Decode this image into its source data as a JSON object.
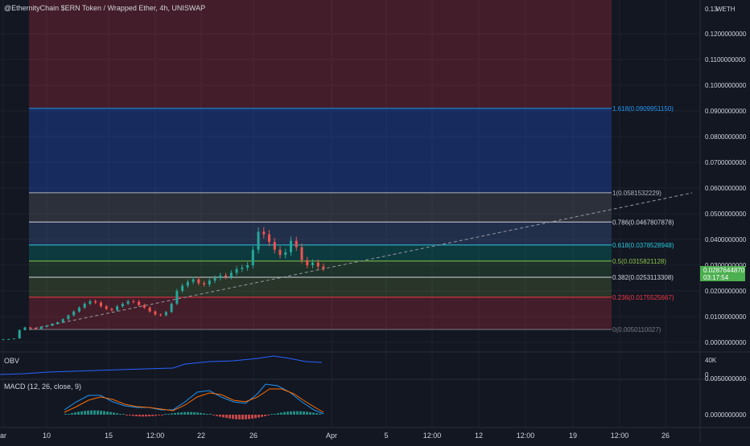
{
  "header": {
    "symbol_title": "@EthernityChain $ERN Token / Wrapped Ether, 4h, UNISWAP",
    "quote_badge": "WETH"
  },
  "price_axis": {
    "top_clipped_label": "0.13",
    "labels": [
      "0.1200000000",
      "0.1100000000",
      "0.1000000000",
      "0.0900000000",
      "0.0800000000",
      "0.0700000000",
      "0.0600000000",
      "0.0500000000",
      "0.0400000000",
      "0.0300000000",
      "0.0200000000",
      "0.0100000000",
      "0.0000000000"
    ],
    "current_price": "0.0287644870",
    "countdown": "03:17:54"
  },
  "time_axis": {
    "labels": [
      "ar",
      "10",
      "15",
      "12:00",
      "22",
      "26",
      "Apr",
      "5",
      "12:00",
      "12",
      "12:00",
      "19",
      "12:00",
      "26"
    ]
  },
  "fib_levels": [
    {
      "ratio": "0",
      "price": "0.0050110027",
      "label": "0(0.0050110027)",
      "color": "#787b86"
    },
    {
      "ratio": "0.236",
      "price": "0.0175525667",
      "label": "0.236(0.0175525667)",
      "color": "#f23645"
    },
    {
      "ratio": "0.382",
      "price": "0.0253113308",
      "label": "0.382(0.0253113308)",
      "color": "#d1d4dc"
    },
    {
      "ratio": "0.5",
      "price": "0.0315821128",
      "label": "0.5(0.0315821128)",
      "color": "#8bc34a"
    },
    {
      "ratio": "0.618",
      "price": "0.0378528948",
      "label": "0.618(0.0378528948)",
      "color": "#26c6da"
    },
    {
      "ratio": "0.786",
      "price": "0.0467807878",
      "label": "0.786(0.0467807878)",
      "color": "#d1d4dc"
    },
    {
      "ratio": "1",
      "price": "0.0581532229",
      "label": "1(0.0581532229)",
      "color": "#b2b5be"
    },
    {
      "ratio": "1.618",
      "price": "0.0909951150",
      "label": "1.618(0.0909951150)",
      "color": "#2196f3"
    }
  ],
  "obv": {
    "title": "OBV",
    "axis_labels": [
      "40K",
      "0"
    ]
  },
  "macd": {
    "title": "MACD (12, 26, close, 9)",
    "axis_labels": [
      "0.0050000000",
      "0.0000000000"
    ]
  },
  "colors": {
    "background": "#131722",
    "up_candle": "#26a69a",
    "down_candle": "#ef5350",
    "obv_line": "#2962ff",
    "macd_line": "#2196f3",
    "signal_line": "#ff6d00",
    "price_label_bg": "#4caf50"
  },
  "chart_data": {
    "type": "candlestick",
    "timeframe": "4h",
    "y_range": [
      0,
      0.13
    ],
    "candles_approx_close": [
      0.0012,
      0.0013,
      0.0015,
      0.0048,
      0.0058,
      0.0055,
      0.0052,
      0.006,
      0.0065,
      0.0072,
      0.0078,
      0.009,
      0.0105,
      0.012,
      0.0135,
      0.015,
      0.016,
      0.0155,
      0.014,
      0.013,
      0.0125,
      0.014,
      0.015,
      0.016,
      0.0158,
      0.0145,
      0.0135,
      0.012,
      0.0108,
      0.0105,
      0.0118,
      0.015,
      0.02,
      0.022,
      0.0235,
      0.0245,
      0.023,
      0.0225,
      0.024,
      0.025,
      0.026,
      0.0255,
      0.027,
      0.0285,
      0.029,
      0.03,
      0.036,
      0.043,
      0.042,
      0.039,
      0.036,
      0.034,
      0.035,
      0.0395,
      0.037,
      0.032,
      0.03,
      0.031,
      0.0295,
      0.0288
    ]
  }
}
